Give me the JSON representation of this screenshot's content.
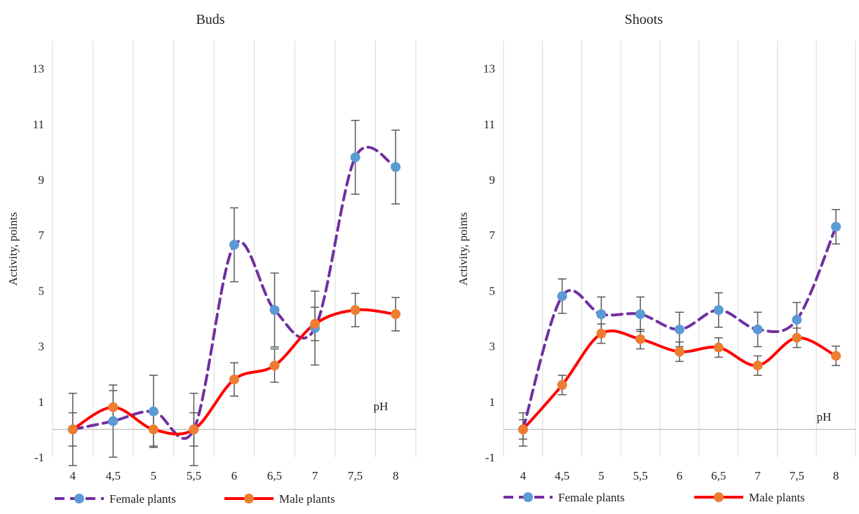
{
  "chart_data": [
    {
      "type": "line",
      "title": "Buds",
      "ylabel": "Activity, points",
      "annotation": "pH",
      "categories": [
        "4",
        "4,5",
        "5",
        "5,5",
        "6",
        "6,5",
        "7",
        "7,5",
        "8"
      ],
      "ylim": [
        -1,
        14
      ],
      "yticks": [
        "-1",
        "1",
        "3",
        "5",
        "7",
        "9",
        "11",
        "13"
      ],
      "grid": "vertical",
      "legend_position": "bottom",
      "series": [
        {
          "name": "Female plants",
          "style": "dashed",
          "line_color": "#7030A0",
          "marker_color": "#5B9BD5",
          "values": [
            0,
            0.3,
            0.65,
            0,
            6.65,
            4.3,
            3.65,
            9.8,
            9.45
          ],
          "errors": [
            1.3,
            1.3,
            1.3,
            1.3,
            1.33,
            1.33,
            1.33,
            1.33,
            1.33
          ]
        },
        {
          "name": "Male plants",
          "style": "solid",
          "line_color": "#FF0000",
          "marker_color": "#ED7D31",
          "values": [
            0,
            0.8,
            0,
            0,
            1.8,
            2.3,
            3.8,
            4.3,
            4.15
          ],
          "errors": [
            0.6,
            0.6,
            0.6,
            0.6,
            0.6,
            0.6,
            0.6,
            0.6,
            0.6
          ]
        }
      ]
    },
    {
      "type": "line",
      "title": "Shoots",
      "ylabel": "Activity, points",
      "annotation": "pH",
      "categories": [
        "4",
        "4,5",
        "5",
        "5,5",
        "6",
        "6,5",
        "7",
        "7,5",
        "8"
      ],
      "ylim": [
        -1,
        14
      ],
      "yticks": [
        "-1",
        "1",
        "3",
        "5",
        "7",
        "9",
        "11",
        "13"
      ],
      "grid": "vertical",
      "legend_position": "bottom",
      "series": [
        {
          "name": "Female plants",
          "style": "dashed",
          "line_color": "#7030A0",
          "marker_color": "#5B9BD5",
          "values": [
            0,
            4.8,
            4.15,
            4.15,
            3.6,
            4.3,
            3.6,
            3.95,
            7.3
          ],
          "errors": [
            0.6,
            0.62,
            0.62,
            0.62,
            0.62,
            0.62,
            0.62,
            0.62,
            0.62
          ]
        },
        {
          "name": "Male plants",
          "style": "solid",
          "line_color": "#FF0000",
          "marker_color": "#ED7D31",
          "values": [
            0,
            1.6,
            3.45,
            3.25,
            2.8,
            2.95,
            2.3,
            3.3,
            2.65
          ],
          "errors": [
            0.35,
            0.35,
            0.35,
            0.35,
            0.35,
            0.35,
            0.35,
            0.35,
            0.35
          ]
        }
      ]
    }
  ]
}
